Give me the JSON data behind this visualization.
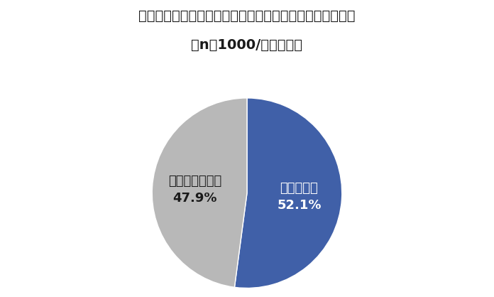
{
  "title_line1": "商品やサービスの選び方を変えたり、変えたいと思ったか",
  "title_line2": "（n＝1000/単数回答）",
  "slices": [
    52.1,
    47.9
  ],
  "labels": [
    "あてはまる",
    "あてはまらない"
  ],
  "colors": [
    "#4060a8",
    "#b8b8b8"
  ],
  "label_colors": [
    "#ffffff",
    "#1a1a1a"
  ],
  "pct_labels": [
    "52.1%",
    "47.9%"
  ],
  "background_color": "#ffffff",
  "title_fontsize": 14,
  "label_fontsize": 13,
  "pct_fontsize": 13,
  "startangle": 90
}
